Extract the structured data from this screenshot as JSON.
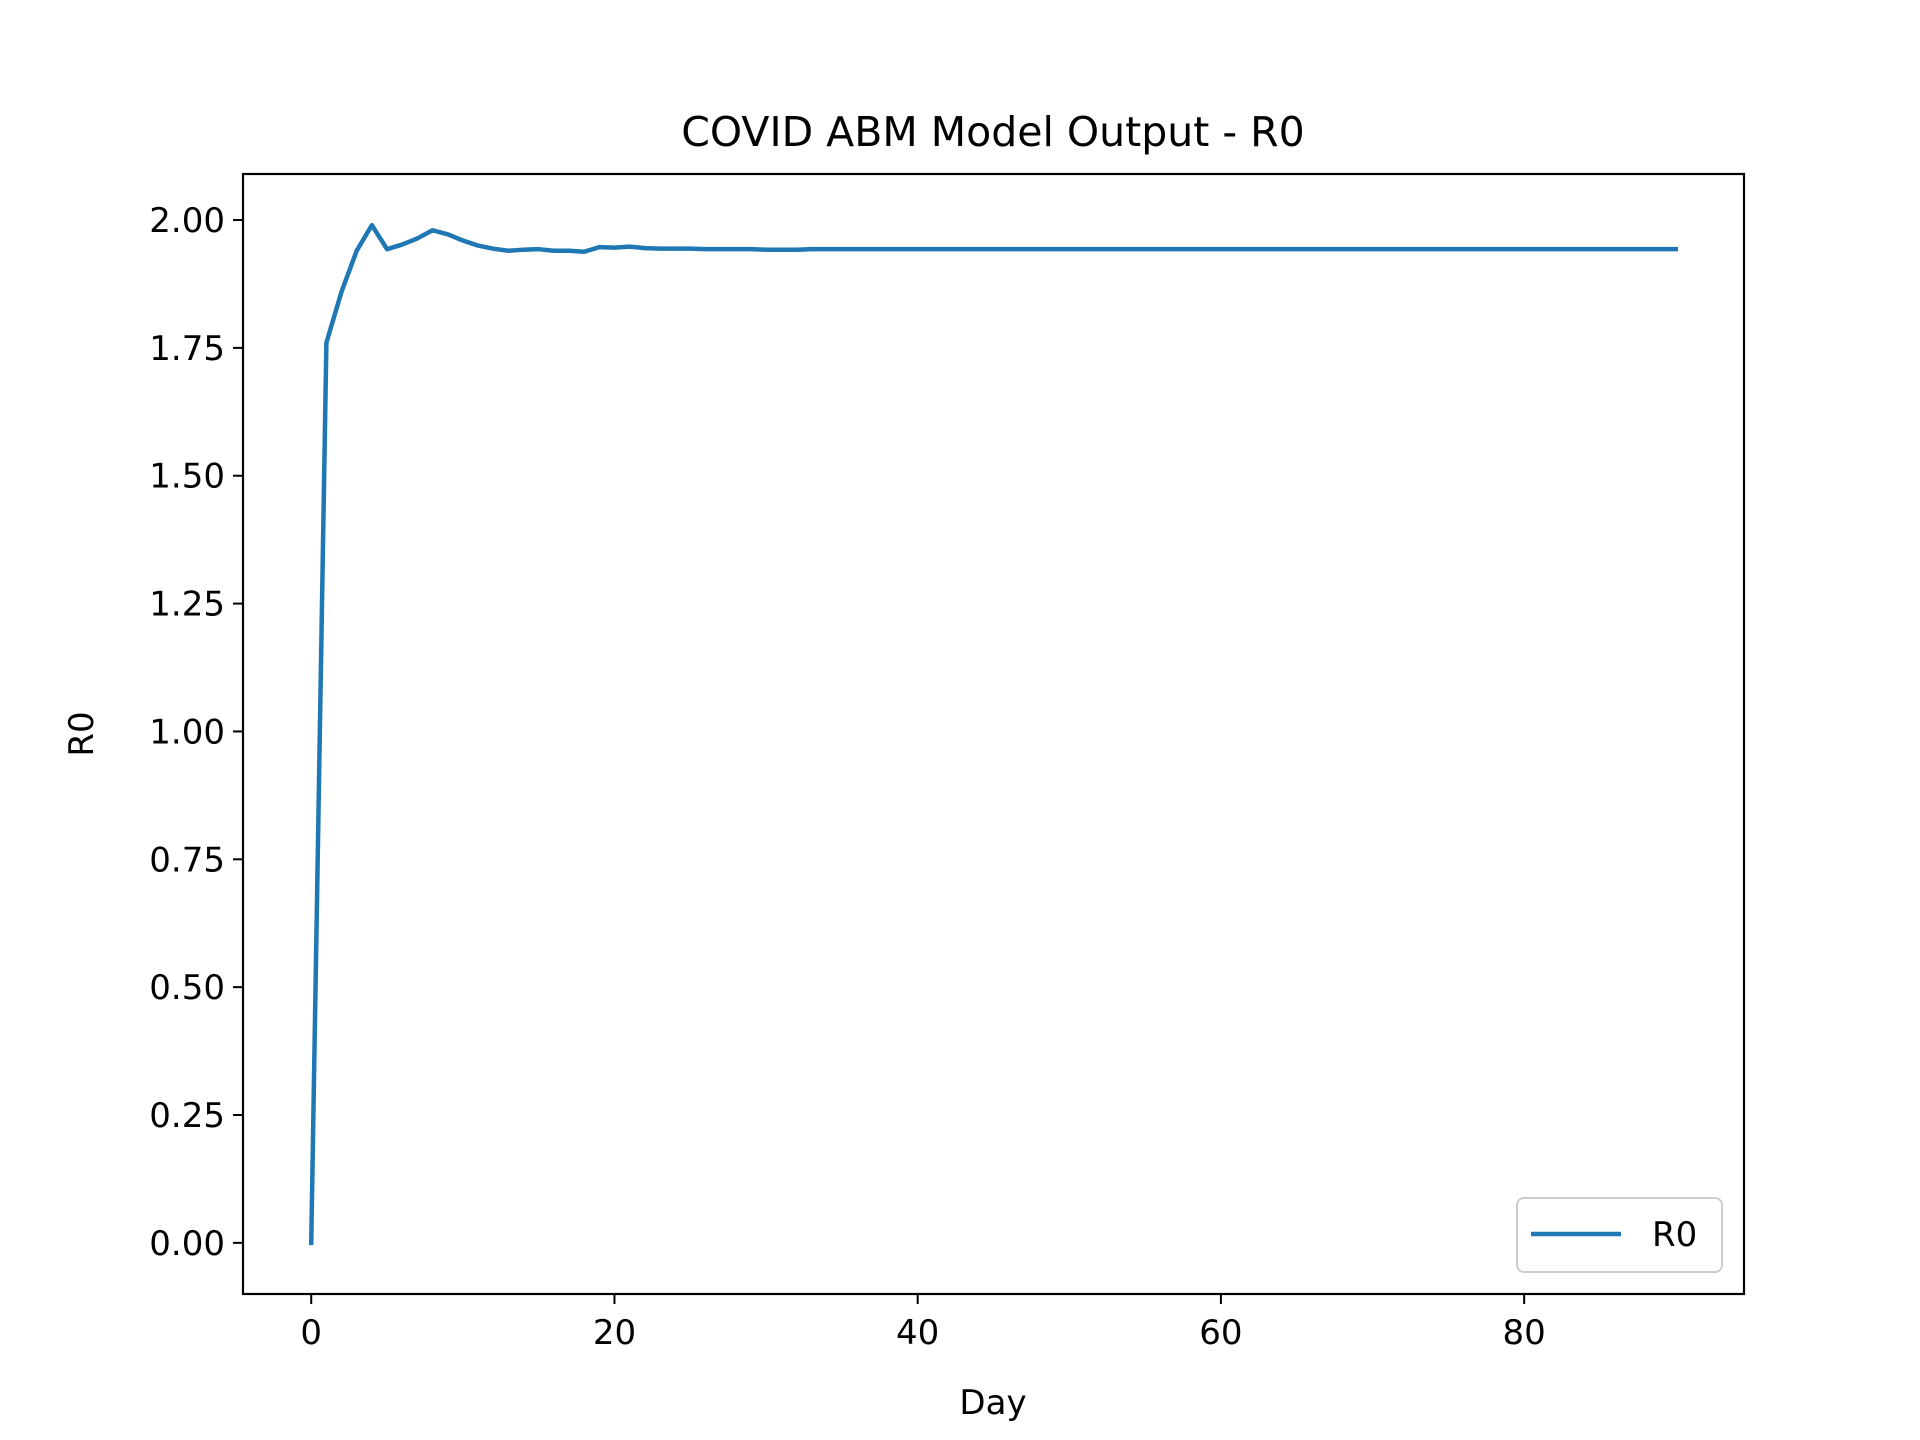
{
  "chart_data": {
    "type": "line",
    "title": "COVID ABM Model Output - R0",
    "xlabel": "Day",
    "ylabel": "R0",
    "xlim": [
      -4.5,
      94.5
    ],
    "ylim": [
      -0.1,
      2.09
    ],
    "xticks": [
      0,
      20,
      40,
      60,
      80
    ],
    "xtick_labels": [
      "0",
      "20",
      "40",
      "60",
      "80"
    ],
    "yticks": [
      0.0,
      0.25,
      0.5,
      0.75,
      1.0,
      1.25,
      1.5,
      1.75,
      2.0
    ],
    "ytick_labels": [
      "0.00",
      "0.25",
      "0.50",
      "0.75",
      "1.00",
      "1.25",
      "1.50",
      "1.75",
      "2.00"
    ],
    "grid": false,
    "legend_position": "lower-right",
    "series": [
      {
        "name": "R0",
        "color": "#1f77b4",
        "x": [
          0,
          1,
          2,
          3,
          4,
          5,
          6,
          7,
          8,
          9,
          10,
          11,
          12,
          13,
          14,
          15,
          16,
          17,
          18,
          19,
          20,
          21,
          22,
          23,
          24,
          25,
          26,
          27,
          28,
          29,
          30,
          31,
          32,
          33,
          34,
          35,
          36,
          37,
          38,
          39,
          40,
          41,
          42,
          43,
          44,
          45,
          46,
          47,
          48,
          49,
          50,
          51,
          52,
          53,
          54,
          55,
          56,
          57,
          58,
          59,
          60,
          61,
          62,
          63,
          64,
          65,
          66,
          67,
          68,
          69,
          70,
          71,
          72,
          73,
          74,
          75,
          76,
          77,
          78,
          79,
          80,
          81,
          82,
          83,
          84,
          85,
          86,
          87,
          88,
          89,
          90
        ],
        "y": [
          0.0,
          1.76,
          1.86,
          1.94,
          1.99,
          1.943,
          1.952,
          1.964,
          1.98,
          1.972,
          1.96,
          1.95,
          1.944,
          1.94,
          1.942,
          1.943,
          1.94,
          1.94,
          1.938,
          1.947,
          1.946,
          1.948,
          1.945,
          1.944,
          1.944,
          1.944,
          1.943,
          1.943,
          1.943,
          1.943,
          1.942,
          1.942,
          1.942,
          1.943,
          1.943,
          1.943,
          1.943,
          1.943,
          1.943,
          1.943,
          1.943,
          1.943,
          1.943,
          1.943,
          1.943,
          1.943,
          1.943,
          1.943,
          1.943,
          1.943,
          1.943,
          1.943,
          1.943,
          1.943,
          1.943,
          1.943,
          1.943,
          1.943,
          1.943,
          1.943,
          1.943,
          1.943,
          1.943,
          1.943,
          1.943,
          1.943,
          1.943,
          1.943,
          1.943,
          1.943,
          1.943,
          1.943,
          1.943,
          1.943,
          1.943,
          1.943,
          1.943,
          1.943,
          1.943,
          1.943,
          1.943,
          1.943,
          1.943,
          1.943,
          1.943,
          1.943,
          1.943,
          1.943,
          1.943,
          1.943,
          1.943
        ]
      }
    ]
  }
}
